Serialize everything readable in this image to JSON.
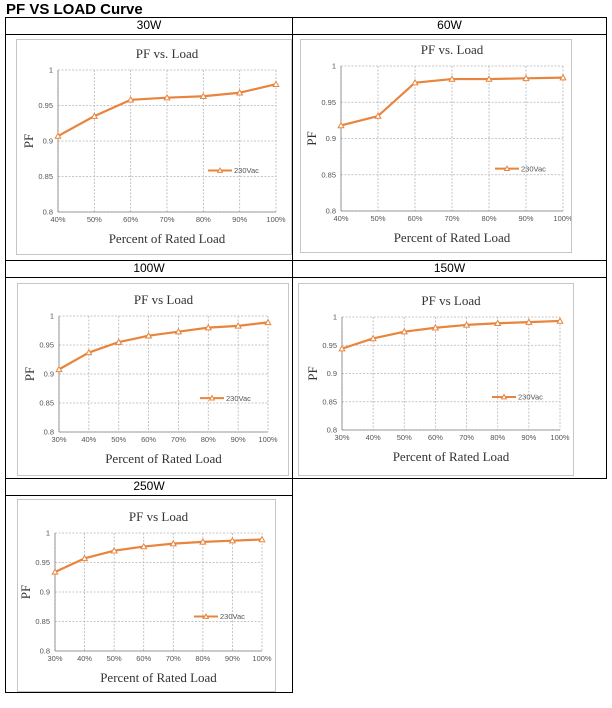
{
  "page": {
    "title": "PF VS LOAD Curve",
    "headers": [
      "30W",
      "60W",
      "100W",
      "150W",
      "250W"
    ]
  },
  "chart_data": [
    {
      "type": "line",
      "title": "PF vs. Load",
      "xlabel": "Percent of Rated Load",
      "ylabel": "PF",
      "categories": [
        "40%",
        "50%",
        "60%",
        "70%",
        "80%",
        "90%",
        "100%"
      ],
      "series": [
        {
          "name": "230Vac",
          "values": [
            0.907,
            0.935,
            0.958,
            0.961,
            0.963,
            0.968,
            0.98
          ]
        }
      ],
      "ylim": [
        0.8,
        1
      ],
      "yticks": [
        "0.8",
        "0.85",
        "0.9",
        "0.95",
        "1"
      ],
      "grid": true,
      "legend": "right",
      "color": "#e8843c"
    },
    {
      "type": "line",
      "title": "PF vs. Load",
      "xlabel": "Percent of Rated Load",
      "ylabel": "PF",
      "categories": [
        "40%",
        "50%",
        "60%",
        "70%",
        "80%",
        "90%",
        "100%"
      ],
      "series": [
        {
          "name": "230Vac",
          "values": [
            0.918,
            0.931,
            0.977,
            0.982,
            0.982,
            0.983,
            0.984
          ]
        }
      ],
      "ylim": [
        0.8,
        1
      ],
      "yticks": [
        "0.8",
        "0.85",
        "0.9",
        "0.95",
        "1"
      ],
      "grid": true,
      "legend": "right",
      "color": "#e8843c"
    },
    {
      "type": "line",
      "title": "PF vs Load",
      "xlabel": "Percent of Rated Load",
      "ylabel": "PF",
      "categories": [
        "30%",
        "40%",
        "50%",
        "60%",
        "70%",
        "80%",
        "90%",
        "100%"
      ],
      "series": [
        {
          "name": "230Vac",
          "values": [
            0.908,
            0.937,
            0.955,
            0.966,
            0.973,
            0.98,
            0.983,
            0.989
          ]
        }
      ],
      "ylim": [
        0.8,
        1
      ],
      "yticks": [
        "0.8",
        "0.85",
        "0.9",
        "0.95",
        "1"
      ],
      "grid": true,
      "legend": "right",
      "color": "#e8843c"
    },
    {
      "type": "line",
      "title": "PF vs Load",
      "xlabel": "Percent of Rated Load",
      "ylabel": "PF",
      "categories": [
        "30%",
        "40%",
        "50%",
        "60%",
        "70%",
        "80%",
        "90%",
        "100%"
      ],
      "series": [
        {
          "name": "230Vac",
          "values": [
            0.944,
            0.962,
            0.974,
            0.981,
            0.986,
            0.989,
            0.991,
            0.993
          ]
        }
      ],
      "ylim": [
        0.8,
        1
      ],
      "yticks": [
        "0.8",
        "0.85",
        "0.9",
        "0.95",
        "1"
      ],
      "grid": true,
      "legend": "right",
      "color": "#e8843c"
    },
    {
      "type": "line",
      "title": "PF vs Load",
      "xlabel": "Percent of Rated Load",
      "ylabel": "PF",
      "categories": [
        "30%",
        "40%",
        "50%",
        "60%",
        "70%",
        "80%",
        "90%",
        "100%"
      ],
      "series": [
        {
          "name": "230Vac",
          "values": [
            0.934,
            0.957,
            0.97,
            0.977,
            0.982,
            0.985,
            0.987,
            0.989
          ]
        }
      ],
      "ylim": [
        0.8,
        1
      ],
      "yticks": [
        "0.8",
        "0.85",
        "0.9",
        "0.95",
        "1"
      ],
      "grid": true,
      "legend": "right",
      "color": "#e8843c"
    }
  ]
}
